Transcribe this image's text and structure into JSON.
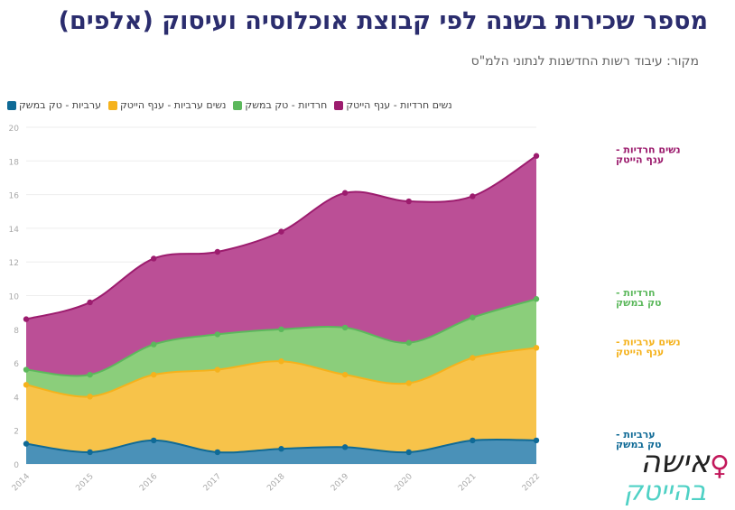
{
  "title": "מספר שכירות בשנה לפי קבוצת אוכלוסיה ועיסוק (אלפים)",
  "source": "מקור:  עיבוד רשות החדשנות לנתוני הלמ\"ס",
  "logo": {
    "line1": "אישה",
    "line2": "בהייטק"
  },
  "chart_data": {
    "type": "area",
    "stacked": true,
    "x": [
      2014,
      2015,
      2016,
      2017,
      2018,
      2019,
      2020,
      2021,
      2022
    ],
    "ylim": [
      0,
      20
    ],
    "yticks": [
      0,
      2,
      4,
      6,
      8,
      10,
      12,
      14,
      16,
      18,
      20
    ],
    "grid": true,
    "legend_position": "top",
    "series": [
      {
        "name": "ערביות - טק במשק",
        "color": "#0f6a96",
        "end_label": "ערביות - טק במשק",
        "values": [
          1.2,
          0.7,
          1.4,
          0.7,
          0.9,
          1.0,
          0.7,
          1.4,
          1.4
        ]
      },
      {
        "name": "נשים ערביות - ענף הייטק",
        "color": "#f5b21c",
        "end_label": "נשים ערביות - ענף הייטק",
        "values": [
          3.5,
          3.3,
          3.9,
          4.9,
          5.2,
          4.3,
          4.1,
          4.9,
          5.5
        ]
      },
      {
        "name": "חרדיות - טק במשק",
        "color": "#5cb85c",
        "end_label": "חרדיות - טק במשק",
        "values": [
          0.9,
          1.3,
          1.8,
          2.1,
          1.9,
          2.8,
          2.4,
          2.4,
          2.9
        ]
      },
      {
        "name": "נשים חרדיות - ענף הייטק",
        "color": "#9c1c6e",
        "end_label": "נשים חרדיות - ענף הייטק",
        "values": [
          3.0,
          4.3,
          5.1,
          4.9,
          5.8,
          8.0,
          8.4,
          7.2,
          8.5
        ]
      }
    ]
  }
}
